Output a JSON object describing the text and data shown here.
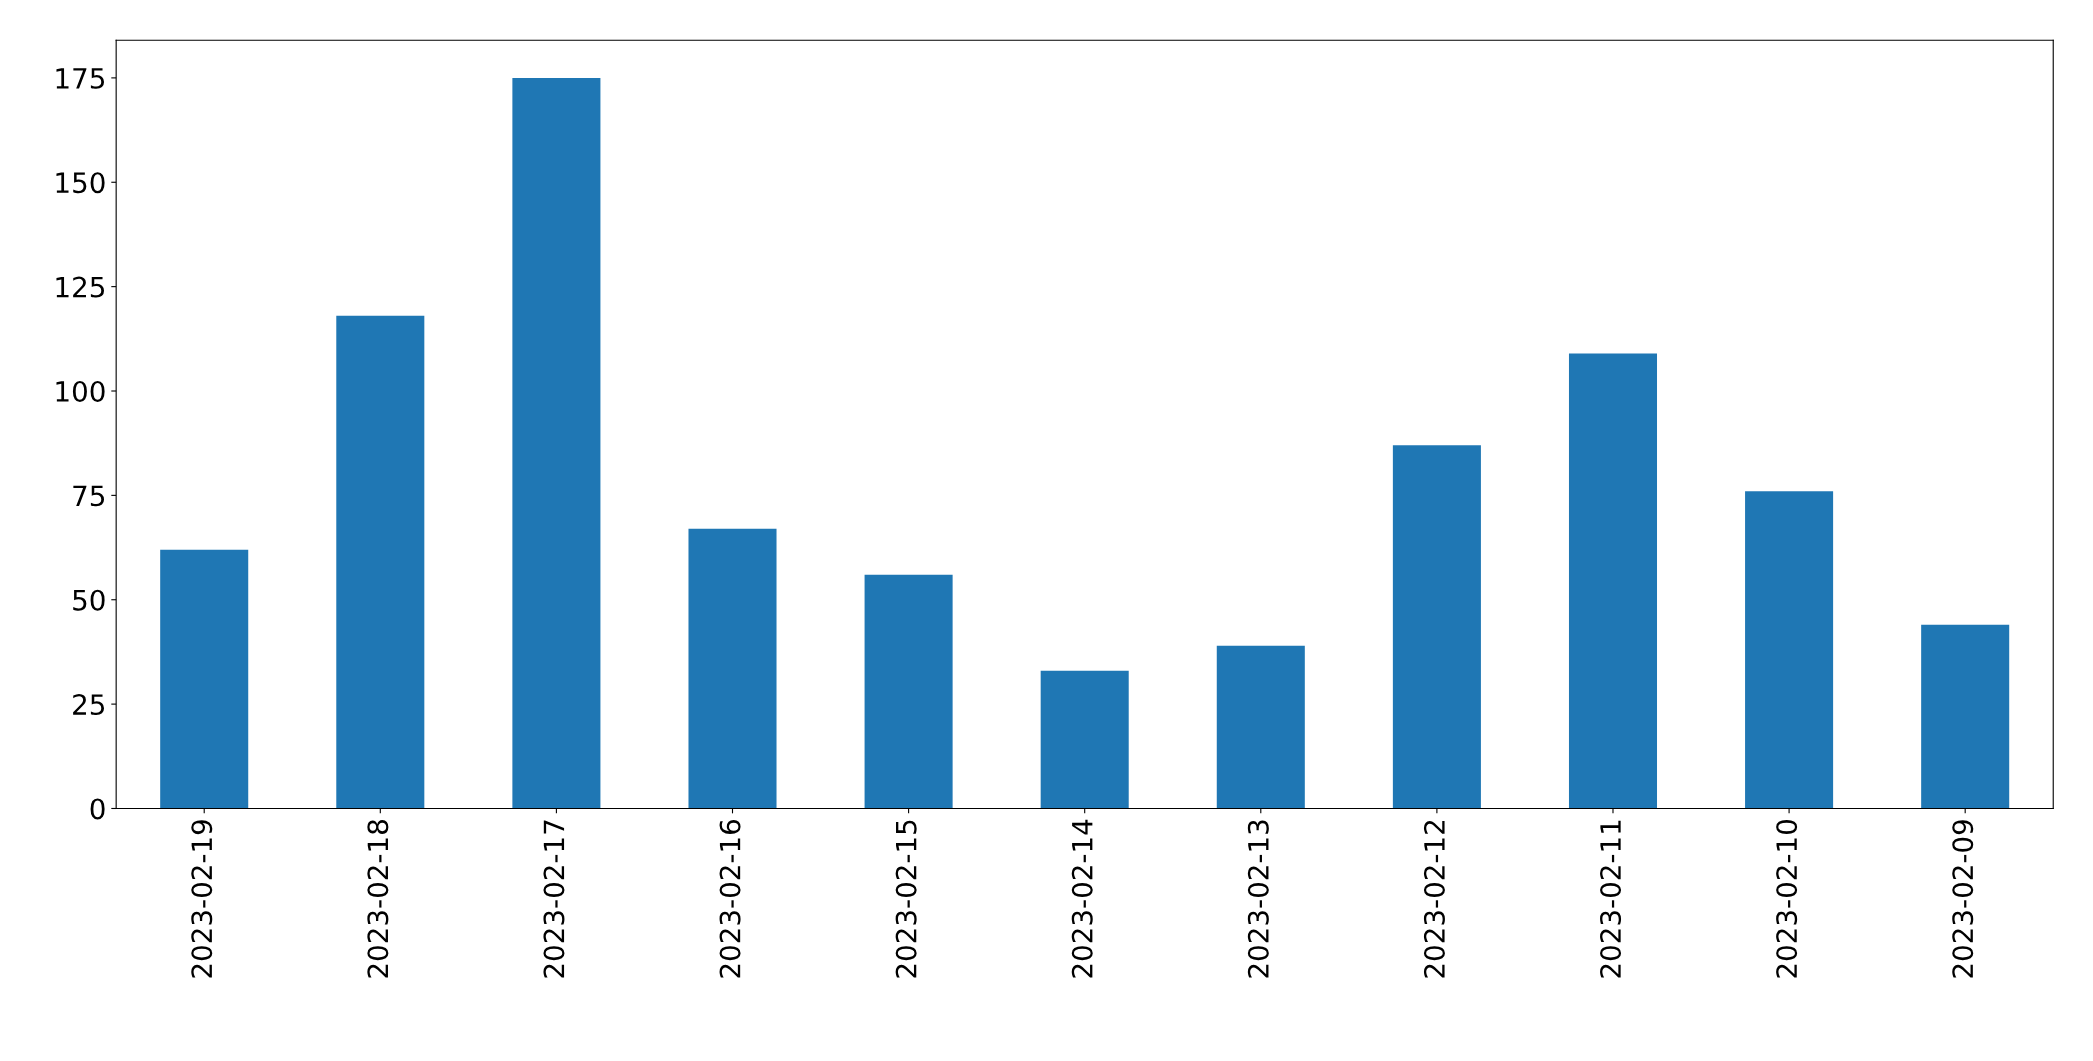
{
  "chart_data": {
    "type": "bar",
    "categories": [
      "2023-02-19",
      "2023-02-18",
      "2023-02-17",
      "2023-02-16",
      "2023-02-15",
      "2023-02-14",
      "2023-02-13",
      "2023-02-12",
      "2023-02-11",
      "2023-02-10",
      "2023-02-09"
    ],
    "values": [
      62,
      118,
      175,
      67,
      56,
      33,
      39,
      87,
      109,
      76,
      44
    ],
    "color": "#1f77b4",
    "ylim": [
      0,
      184
    ],
    "yticks": [
      0,
      25,
      50,
      75,
      100,
      125,
      150,
      175
    ],
    "grid": false,
    "legend": false
  }
}
